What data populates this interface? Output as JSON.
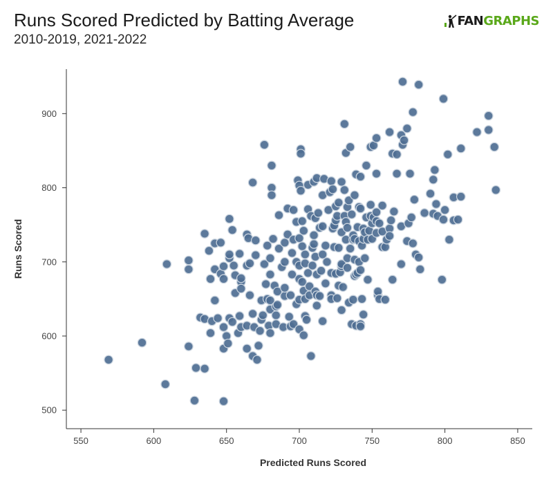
{
  "header": {
    "title": "Runs Scored Predicted by Batting Average",
    "subtitle": "2010-2019, 2021-2022"
  },
  "logo": {
    "part1": "FAN",
    "part2": "GRAPHS",
    "icon": "fangraphs-batter-icon"
  },
  "colors": {
    "point": "#4e6e92",
    "point_stroke": "#c9d3de",
    "logo_green": "#5aa81a"
  },
  "chart_data": {
    "type": "scatter",
    "title": "Runs Scored Predicted by Batting Average",
    "subtitle": "2010-2019, 2021-2022",
    "xlabel": "Predicted Runs Scored",
    "ylabel": "Runs Scored",
    "xlim": [
      540,
      860
    ],
    "ylim": [
      475,
      960
    ],
    "xticks": [
      550,
      600,
      650,
      700,
      750,
      800,
      850
    ],
    "yticks": [
      500,
      600,
      700,
      800,
      900
    ],
    "grid": false,
    "points": [
      [
        569,
        568
      ],
      [
        592,
        591
      ],
      [
        608,
        535
      ],
      [
        609,
        697
      ],
      [
        624,
        702
      ],
      [
        624,
        690
      ],
      [
        624,
        586
      ],
      [
        628,
        513
      ],
      [
        629,
        557
      ],
      [
        632,
        625
      ],
      [
        635,
        556
      ],
      [
        635,
        623
      ],
      [
        635,
        738
      ],
      [
        638,
        715
      ],
      [
        639,
        677
      ],
      [
        639,
        604
      ],
      [
        640,
        620
      ],
      [
        642,
        648
      ],
      [
        642,
        690
      ],
      [
        642,
        725
      ],
      [
        644,
        624
      ],
      [
        646,
        684
      ],
      [
        646,
        726
      ],
      [
        648,
        512
      ],
      [
        648,
        583
      ],
      [
        648,
        612
      ],
      [
        648,
        677
      ],
      [
        648,
        694
      ],
      [
        650,
        600
      ],
      [
        651,
        590
      ],
      [
        652,
        624
      ],
      [
        652,
        705
      ],
      [
        652,
        710
      ],
      [
        652,
        758
      ],
      [
        654,
        743
      ],
      [
        654,
        619
      ],
      [
        655,
        695
      ],
      [
        656,
        682
      ],
      [
        656,
        658
      ],
      [
        658,
        604
      ],
      [
        659,
        627
      ],
      [
        659,
        711
      ],
      [
        660,
        612
      ],
      [
        660,
        673
      ],
      [
        660,
        664
      ],
      [
        660,
        678
      ],
      [
        664,
        583
      ],
      [
        664,
        614
      ],
      [
        664,
        695
      ],
      [
        664,
        737
      ],
      [
        665,
        732
      ],
      [
        666,
        698
      ],
      [
        666,
        655
      ],
      [
        668,
        807
      ],
      [
        668,
        573
      ],
      [
        668,
        630
      ],
      [
        669,
        612
      ],
      [
        670,
        709
      ],
      [
        670,
        729
      ],
      [
        671,
        568
      ],
      [
        672,
        587
      ],
      [
        673,
        607
      ],
      [
        674,
        648
      ],
      [
        674,
        622
      ],
      [
        675,
        628
      ],
      [
        676,
        858
      ],
      [
        676,
        697
      ],
      [
        677,
        670
      ],
      [
        678,
        650
      ],
      [
        678,
        722
      ],
      [
        679,
        614
      ],
      [
        680,
        604
      ],
      [
        680,
        705
      ],
      [
        680,
        683
      ],
      [
        680,
        648
      ],
      [
        680,
        636
      ],
      [
        681,
        830
      ],
      [
        681,
        800
      ],
      [
        681,
        790
      ],
      [
        682,
        731
      ],
      [
        683,
        668
      ],
      [
        684,
        616
      ],
      [
        684,
        640
      ],
      [
        684,
        628
      ],
      [
        685,
        660
      ],
      [
        685,
        642
      ],
      [
        686,
        763
      ],
      [
        686,
        718
      ],
      [
        688,
        693
      ],
      [
        689,
        612
      ],
      [
        690,
        654
      ],
      [
        690,
        726
      ],
      [
        690,
        665
      ],
      [
        690,
        700
      ],
      [
        692,
        737
      ],
      [
        692,
        772
      ],
      [
        693,
        626
      ],
      [
        694,
        655
      ],
      [
        694,
        613
      ],
      [
        695,
        683
      ],
      [
        695,
        712
      ],
      [
        696,
        770
      ],
      [
        696,
        616
      ],
      [
        696,
        730
      ],
      [
        698,
        700
      ],
      [
        698,
        754
      ],
      [
        698,
        643
      ],
      [
        699,
        810
      ],
      [
        700,
        695
      ],
      [
        700,
        609
      ],
      [
        700,
        803
      ],
      [
        700,
        649
      ],
      [
        700,
        677
      ],
      [
        700,
        732
      ],
      [
        701,
        852
      ],
      [
        701,
        846
      ],
      [
        701,
        796
      ],
      [
        702,
        755
      ],
      [
        702,
        721
      ],
      [
        702,
        673
      ],
      [
        703,
        742
      ],
      [
        703,
        601
      ],
      [
        703,
        661
      ],
      [
        704,
        710
      ],
      [
        704,
        627
      ],
      [
        704,
        698
      ],
      [
        704,
        650
      ],
      [
        705,
        622
      ],
      [
        706,
        771
      ],
      [
        706,
        804
      ],
      [
        706,
        685
      ],
      [
        707,
        667
      ],
      [
        707,
        655
      ],
      [
        708,
        573
      ],
      [
        708,
        762
      ],
      [
        709,
        695
      ],
      [
        709,
        719
      ],
      [
        710,
        808
      ],
      [
        710,
        736
      ],
      [
        710,
        724
      ],
      [
        711,
        759
      ],
      [
        711,
        707
      ],
      [
        711,
        660
      ],
      [
        712,
        683
      ],
      [
        712,
        655
      ],
      [
        712,
        813
      ],
      [
        712,
        641
      ],
      [
        713,
        766
      ],
      [
        714,
        746
      ],
      [
        714,
        654
      ],
      [
        715,
        688
      ],
      [
        716,
        620
      ],
      [
        716,
        790
      ],
      [
        716,
        710
      ],
      [
        716,
        748
      ],
      [
        717,
        812
      ],
      [
        718,
        722
      ],
      [
        718,
        671
      ],
      [
        719,
        700
      ],
      [
        720,
        770
      ],
      [
        721,
        794
      ],
      [
        722,
        809
      ],
      [
        722,
        655
      ],
      [
        722,
        650
      ],
      [
        722,
        685
      ],
      [
        723,
        745
      ],
      [
        723,
        798
      ],
      [
        724,
        749
      ],
      [
        724,
        720
      ],
      [
        725,
        684
      ],
      [
        725,
        756
      ],
      [
        725,
        775
      ],
      [
        726,
        651
      ],
      [
        726,
        762
      ],
      [
        727,
        668
      ],
      [
        727,
        719
      ],
      [
        727,
        780
      ],
      [
        728,
        686
      ],
      [
        729,
        808
      ],
      [
        729,
        740
      ],
      [
        729,
        694
      ],
      [
        729,
        635
      ],
      [
        729,
        697
      ],
      [
        730,
        666
      ],
      [
        731,
        762
      ],
      [
        731,
        886
      ],
      [
        731,
        797
      ],
      [
        732,
        754
      ],
      [
        732,
        847
      ],
      [
        732,
        730
      ],
      [
        733,
        705
      ],
      [
        733,
        774
      ],
      [
        733,
        746
      ],
      [
        733,
        692
      ],
      [
        734,
        783
      ],
      [
        734,
        645
      ],
      [
        735,
        855
      ],
      [
        735,
        718
      ],
      [
        736,
        616
      ],
      [
        736,
        764
      ],
      [
        737,
        730
      ],
      [
        737,
        649
      ],
      [
        737,
        736
      ],
      [
        738,
        681
      ],
      [
        738,
        790
      ],
      [
        738,
        703
      ],
      [
        738,
        731
      ],
      [
        739,
        683
      ],
      [
        739,
        614
      ],
      [
        739,
        818
      ],
      [
        740,
        747
      ],
      [
        740,
        685
      ],
      [
        741,
        774
      ],
      [
        741,
        700
      ],
      [
        741,
        728
      ],
      [
        742,
        772
      ],
      [
        742,
        616
      ],
      [
        742,
        689
      ],
      [
        742,
        613
      ],
      [
        742,
        815
      ],
      [
        743,
        722
      ],
      [
        743,
        650
      ],
      [
        744,
        745
      ],
      [
        744,
        629
      ],
      [
        744,
        731
      ],
      [
        745,
        740
      ],
      [
        745,
        705
      ],
      [
        746,
        830
      ],
      [
        746,
        760
      ],
      [
        747,
        676
      ],
      [
        747,
        730
      ],
      [
        748,
        742
      ],
      [
        749,
        855
      ],
      [
        749,
        762
      ],
      [
        749,
        777
      ],
      [
        750,
        731
      ],
      [
        750,
        752
      ],
      [
        751,
        857
      ],
      [
        751,
        760
      ],
      [
        753,
        867
      ],
      [
        753,
        767
      ],
      [
        753,
        755
      ],
      [
        753,
        739
      ],
      [
        753,
        819
      ],
      [
        754,
        655
      ],
      [
        754,
        660
      ],
      [
        755,
        650
      ],
      [
        755,
        752
      ],
      [
        757,
        741
      ],
      [
        757,
        720
      ],
      [
        757,
        776
      ],
      [
        759,
        649
      ],
      [
        759,
        720
      ],
      [
        760,
        730
      ],
      [
        762,
        745
      ],
      [
        762,
        875
      ],
      [
        762,
        735
      ],
      [
        763,
        756
      ],
      [
        764,
        676
      ],
      [
        764,
        846
      ],
      [
        765,
        768
      ],
      [
        767,
        819
      ],
      [
        767,
        845
      ],
      [
        770,
        871
      ],
      [
        770,
        697
      ],
      [
        770,
        748
      ],
      [
        771,
        943
      ],
      [
        771,
        858
      ],
      [
        772,
        864
      ],
      [
        774,
        728
      ],
      [
        774,
        880
      ],
      [
        775,
        752
      ],
      [
        776,
        819
      ],
      [
        777,
        760
      ],
      [
        778,
        902
      ],
      [
        778,
        725
      ],
      [
        779,
        784
      ],
      [
        780,
        710
      ],
      [
        782,
        939
      ],
      [
        782,
        706
      ],
      [
        783,
        690
      ],
      [
        786,
        766
      ],
      [
        790,
        792
      ],
      [
        792,
        765
      ],
      [
        792,
        811
      ],
      [
        793,
        824
      ],
      [
        794,
        778
      ],
      [
        795,
        762
      ],
      [
        798,
        676
      ],
      [
        799,
        920
      ],
      [
        799,
        757
      ],
      [
        800,
        770
      ],
      [
        802,
        845
      ],
      [
        803,
        730
      ],
      [
        806,
        756
      ],
      [
        806,
        787
      ],
      [
        809,
        757
      ],
      [
        811,
        853
      ],
      [
        811,
        788
      ],
      [
        822,
        875
      ],
      [
        830,
        878
      ],
      [
        830,
        897
      ],
      [
        834,
        855
      ],
      [
        835,
        797
      ]
    ]
  }
}
